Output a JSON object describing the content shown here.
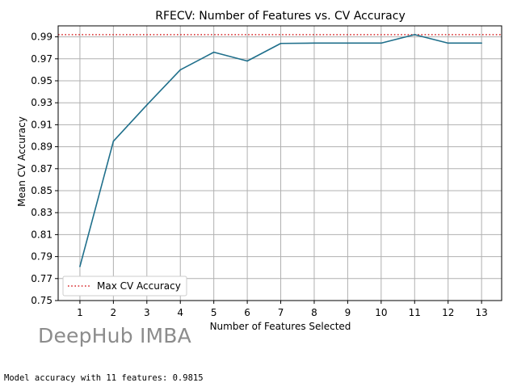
{
  "chart_data": {
    "type": "line",
    "title": "RFECV: Number of Features vs. CV Accuracy",
    "xlabel": "Number of Features Selected",
    "ylabel": "Mean CV Accuracy",
    "x": [
      1,
      2,
      3,
      4,
      5,
      6,
      7,
      8,
      9,
      10,
      11,
      12,
      13
    ],
    "series": [
      {
        "name": "",
        "values": [
          0.781,
          0.895,
          0.928,
          0.96,
          0.976,
          0.968,
          0.984,
          0.9843,
          0.9843,
          0.9843,
          0.992,
          0.9843,
          0.9843
        ],
        "color": "#1f6f8b"
      }
    ],
    "reference_line": {
      "name": "Max CV Accuracy",
      "value": 0.992,
      "color": "#d62728",
      "style": "dotted"
    },
    "xticks": [
      "1",
      "2",
      "3",
      "4",
      "5",
      "6",
      "7",
      "8",
      "9",
      "10",
      "11",
      "12",
      "13"
    ],
    "yticks": [
      "0.75",
      "0.77",
      "0.79",
      "0.81",
      "0.83",
      "0.85",
      "0.87",
      "0.89",
      "0.91",
      "0.93",
      "0.95",
      "0.97",
      "0.99"
    ],
    "xlim": [
      0.35,
      13.6
    ],
    "ylim": [
      0.75,
      1.0
    ],
    "grid": true,
    "legend_position": "lower-left"
  },
  "watermark": "DeepHub IMBA",
  "console_output": "Model accuracy with 11 features: 0.9815"
}
